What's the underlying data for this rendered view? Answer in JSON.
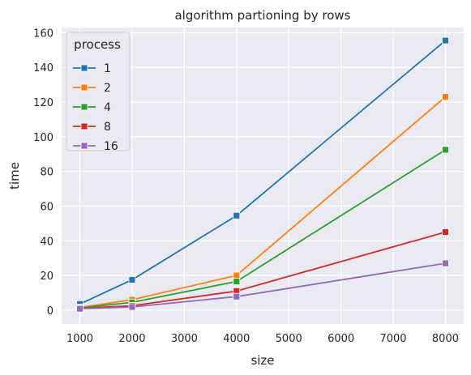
{
  "chart_data": {
    "type": "line",
    "title": "algorithm partioning by rows",
    "xlabel": "size",
    "ylabel": "time",
    "x": [
      1000,
      2000,
      4000,
      8000
    ],
    "xlim": [
      650,
      8350
    ],
    "ylim": [
      -8,
      163
    ],
    "xticks": [
      1000,
      2000,
      3000,
      4000,
      5000,
      6000,
      7000,
      8000
    ],
    "yticks": [
      0,
      20,
      40,
      60,
      80,
      100,
      120,
      140,
      160
    ],
    "grid": true,
    "legend": {
      "title": "process",
      "placement": "top-left"
    },
    "series": [
      {
        "name": "1",
        "color": "#1f77b4",
        "values": [
          3.5,
          17.5,
          54.5,
          155.5
        ]
      },
      {
        "name": "2",
        "color": "#ff7f0e",
        "values": [
          1.5,
          6.0,
          20.0,
          123.0
        ]
      },
      {
        "name": "4",
        "color": "#2ca02c",
        "values": [
          1.2,
          4.5,
          16.5,
          92.5
        ]
      },
      {
        "name": "8",
        "color": "#d62728",
        "values": [
          1.0,
          2.5,
          11.0,
          45.0
        ]
      },
      {
        "name": "16",
        "color": "#9467bd",
        "values": [
          0.8,
          1.8,
          7.8,
          27.0
        ]
      }
    ]
  }
}
